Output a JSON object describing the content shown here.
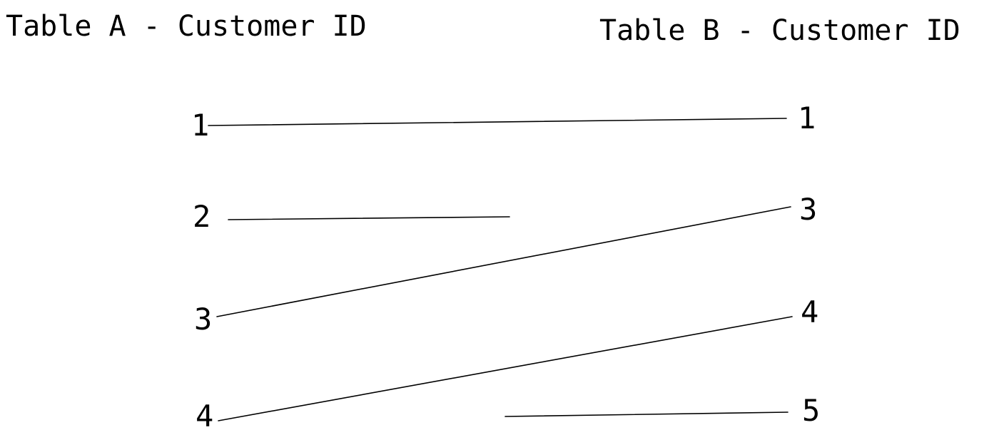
{
  "table_a": {
    "title": "Table A - Customer ID",
    "ids": [
      "1",
      "2",
      "3",
      "4"
    ]
  },
  "table_b": {
    "title": "Table B - Customer ID",
    "ids": [
      "1",
      "3",
      "4",
      "5"
    ]
  },
  "connections": [
    {
      "from_a": "1",
      "to_b": "1",
      "type": "match"
    },
    {
      "from_a": "2",
      "to_b": null,
      "type": "unmatched-left"
    },
    {
      "from_a": "3",
      "to_b": "3",
      "type": "match"
    },
    {
      "from_a": "4",
      "to_b": "4",
      "type": "match"
    },
    {
      "from_a": null,
      "to_b": "5",
      "type": "unmatched-right"
    }
  ],
  "colors": {
    "line": "#000000",
    "text": "#000000",
    "background": "#ffffff"
  }
}
